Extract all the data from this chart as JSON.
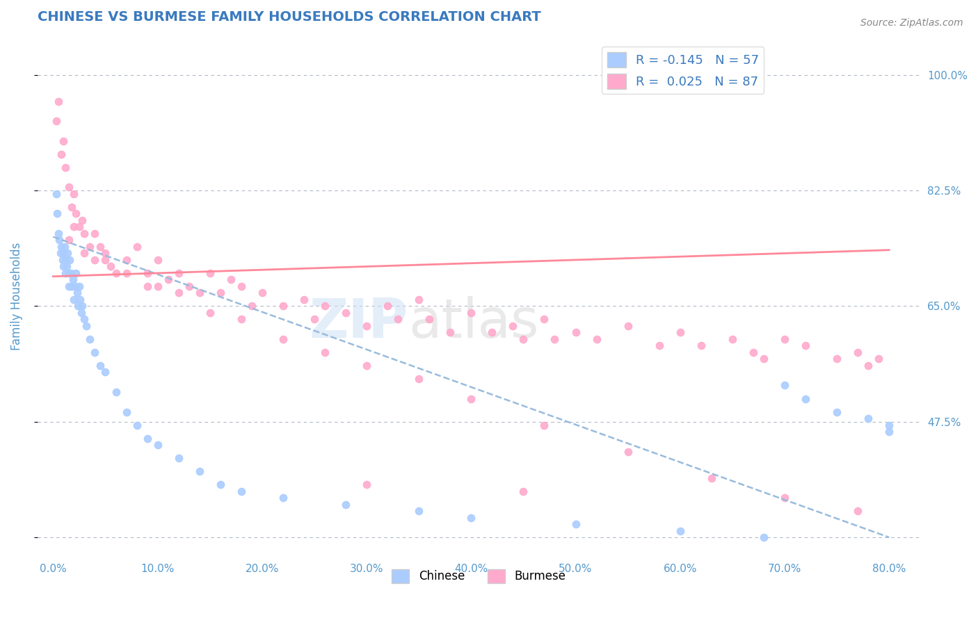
{
  "title": "CHINESE VS BURMESE FAMILY HOUSEHOLDS CORRELATION CHART",
  "source_text": "Source: ZipAtlas.com",
  "ylabel": "Family Households",
  "x_ticks": [
    0.0,
    10.0,
    20.0,
    30.0,
    40.0,
    50.0,
    60.0,
    70.0,
    80.0
  ],
  "x_tick_labels": [
    "0.0%",
    "10.0%",
    "20.0%",
    "30.0%",
    "40.0%",
    "50.0%",
    "60.0%",
    "70.0%",
    "80.0%"
  ],
  "y_ticks": [
    0.3,
    0.475,
    0.65,
    0.825,
    1.0
  ],
  "y_tick_labels_right": [
    "",
    "47.5%",
    "65.0%",
    "82.5%",
    "100.0%"
  ],
  "xlim": [
    -1.5,
    83.0
  ],
  "ylim": [
    0.27,
    1.06
  ],
  "title_color": "#3a7abf",
  "axis_color": "#5599cc",
  "tick_color": "#5599cc",
  "grid_color": "#b0b8c8",
  "chinese_color": "#aaccff",
  "burmese_color": "#ffaacc",
  "chinese_line_color": "#99bbdd",
  "burmese_line_color": "#ff8899",
  "R_chinese": -0.145,
  "N_chinese": 57,
  "R_burmese": 0.025,
  "N_burmese": 87,
  "watermark_zip": "ZIP",
  "watermark_atlas": "atlas",
  "legend_labels": [
    "Chinese",
    "Burmese"
  ],
  "chinese_line_x0": 0.0,
  "chinese_line_y0": 0.755,
  "chinese_line_x1": 80.0,
  "chinese_line_y1": 0.3,
  "burmese_line_x0": 0.0,
  "burmese_line_y0": 0.695,
  "burmese_line_x1": 80.0,
  "burmese_line_y1": 0.735,
  "chinese_scatter_x": [
    0.3,
    0.4,
    0.5,
    0.6,
    0.7,
    0.8,
    0.9,
    1.0,
    1.0,
    1.1,
    1.2,
    1.2,
    1.3,
    1.4,
    1.5,
    1.5,
    1.6,
    1.7,
    1.8,
    1.9,
    2.0,
    2.1,
    2.2,
    2.3,
    2.4,
    2.5,
    2.6,
    2.7,
    2.8,
    3.0,
    3.2,
    3.5,
    4.0,
    4.5,
    5.0,
    6.0,
    7.0,
    8.0,
    9.0,
    10.0,
    12.0,
    14.0,
    16.0,
    18.0,
    22.0,
    28.0,
    35.0,
    40.0,
    50.0,
    60.0,
    68.0,
    70.0,
    72.0,
    75.0,
    78.0,
    80.0,
    80.0
  ],
  "chinese_scatter_y": [
    0.82,
    0.79,
    0.76,
    0.75,
    0.73,
    0.74,
    0.72,
    0.73,
    0.71,
    0.74,
    0.7,
    0.72,
    0.71,
    0.73,
    0.7,
    0.68,
    0.72,
    0.7,
    0.68,
    0.69,
    0.66,
    0.68,
    0.7,
    0.67,
    0.65,
    0.68,
    0.66,
    0.64,
    0.65,
    0.63,
    0.62,
    0.6,
    0.58,
    0.56,
    0.55,
    0.52,
    0.49,
    0.47,
    0.45,
    0.44,
    0.42,
    0.4,
    0.38,
    0.37,
    0.36,
    0.35,
    0.34,
    0.33,
    0.32,
    0.31,
    0.3,
    0.53,
    0.51,
    0.49,
    0.48,
    0.47,
    0.46
  ],
  "burmese_scatter_x": [
    0.3,
    0.5,
    0.8,
    1.0,
    1.2,
    1.5,
    1.8,
    2.0,
    2.2,
    2.5,
    2.8,
    3.0,
    3.5,
    4.0,
    4.5,
    5.0,
    5.5,
    6.0,
    7.0,
    8.0,
    9.0,
    10.0,
    10.0,
    11.0,
    12.0,
    13.0,
    14.0,
    15.0,
    16.0,
    17.0,
    18.0,
    19.0,
    20.0,
    22.0,
    24.0,
    25.0,
    26.0,
    28.0,
    30.0,
    32.0,
    33.0,
    35.0,
    36.0,
    38.0,
    40.0,
    42.0,
    44.0,
    45.0,
    47.0,
    48.0,
    50.0,
    52.0,
    55.0,
    58.0,
    60.0,
    62.0,
    65.0,
    67.0,
    68.0,
    70.0,
    72.0,
    75.0,
    77.0,
    78.0,
    79.0,
    1.5,
    2.0,
    3.0,
    4.0,
    5.0,
    7.0,
    9.0,
    12.0,
    15.0,
    18.0,
    22.0,
    26.0,
    30.0,
    35.0,
    40.0,
    47.0,
    55.0,
    63.0,
    70.0,
    77.0,
    30.0,
    45.0
  ],
  "burmese_scatter_y": [
    0.93,
    0.96,
    0.88,
    0.9,
    0.86,
    0.83,
    0.8,
    0.82,
    0.79,
    0.77,
    0.78,
    0.76,
    0.74,
    0.72,
    0.74,
    0.73,
    0.71,
    0.7,
    0.72,
    0.74,
    0.7,
    0.68,
    0.72,
    0.69,
    0.7,
    0.68,
    0.67,
    0.7,
    0.67,
    0.69,
    0.68,
    0.65,
    0.67,
    0.65,
    0.66,
    0.63,
    0.65,
    0.64,
    0.62,
    0.65,
    0.63,
    0.66,
    0.63,
    0.61,
    0.64,
    0.61,
    0.62,
    0.6,
    0.63,
    0.6,
    0.61,
    0.6,
    0.62,
    0.59,
    0.61,
    0.59,
    0.6,
    0.58,
    0.57,
    0.6,
    0.59,
    0.57,
    0.58,
    0.56,
    0.57,
    0.75,
    0.77,
    0.73,
    0.76,
    0.72,
    0.7,
    0.68,
    0.67,
    0.64,
    0.63,
    0.6,
    0.58,
    0.56,
    0.54,
    0.51,
    0.47,
    0.43,
    0.39,
    0.36,
    0.34,
    0.38,
    0.37
  ]
}
